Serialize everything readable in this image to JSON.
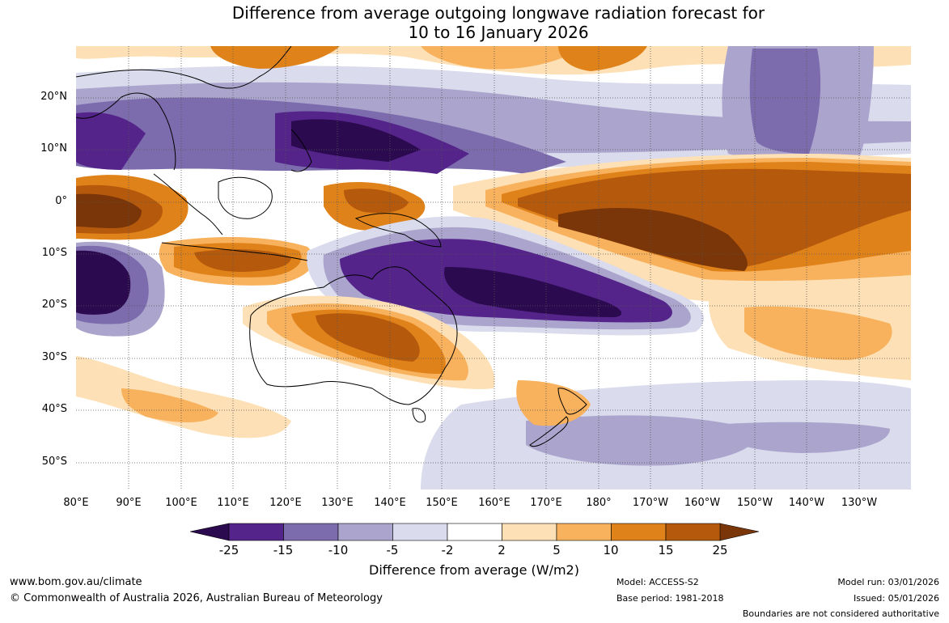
{
  "title": {
    "line1": "Difference from average outgoing longwave radiation forecast for",
    "line2": "10 to 16 January 2026"
  },
  "lat_labels": [
    "20°N",
    "10°N",
    "0°",
    "10°S",
    "20°S",
    "30°S",
    "40°S",
    "50°S"
  ],
  "lon_labels": [
    "80°E",
    "90°E",
    "100°E",
    "110°E",
    "120°E",
    "130°E",
    "140°E",
    "150°E",
    "160°E",
    "170°E",
    "180°",
    "170°W",
    "160°W",
    "150°W",
    "140°W",
    "130°W"
  ],
  "colorbar": {
    "ticks": [
      "-25",
      "-15",
      "-10",
      "-5",
      "-2",
      "2",
      "5",
      "10",
      "15",
      "25"
    ],
    "colors": [
      "#2b0a4f",
      "#54248a",
      "#7d6cad",
      "#aba5ce",
      "#dadbec",
      "#ffffff",
      "#fde0b5",
      "#f8b15c",
      "#e0821a",
      "#b5590c",
      "#7a3608"
    ],
    "label": "Difference from average (W/m2)"
  },
  "footer": {
    "site": "www.bom.gov.au/climate",
    "copyright": "© Commonwealth of Australia 2026, Australian Bureau of Meteorology",
    "model": "Model: ACCESS-S2",
    "base_period": "Base period: 1981-2018",
    "model_run": "Model run: 03/01/2026",
    "issued": "Issued: 05/01/2026",
    "disclaimer": "Boundaries are not considered authoritative"
  }
}
